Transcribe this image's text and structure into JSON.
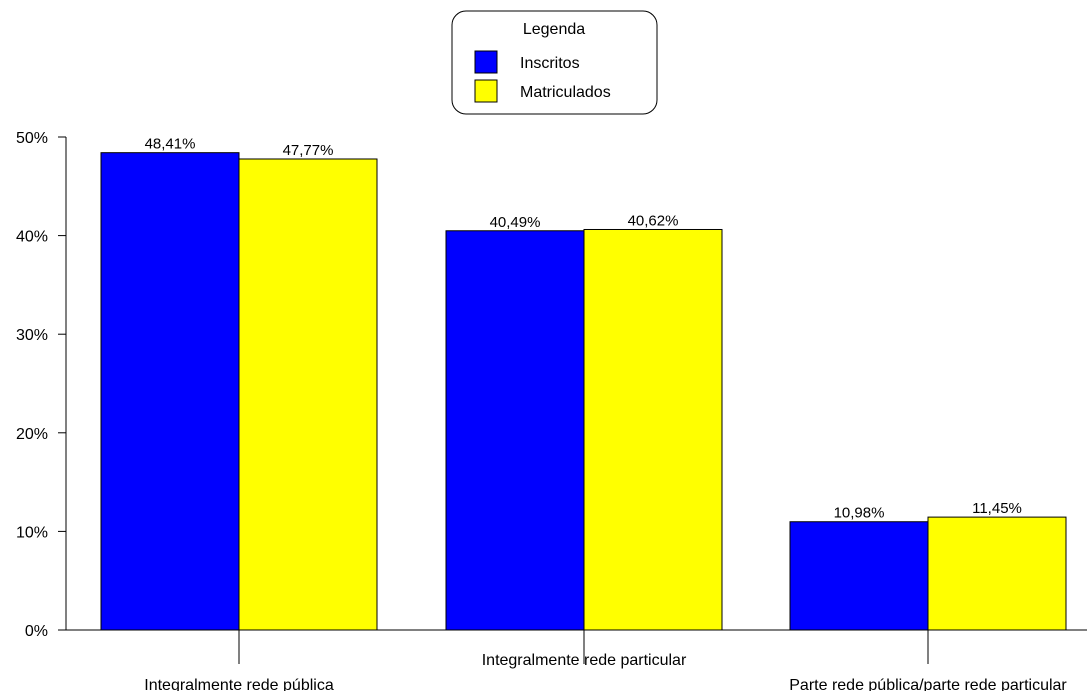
{
  "chart_data": {
    "type": "bar",
    "title": "",
    "xlabel": "",
    "ylabel": "",
    "categories": [
      "Integralmente rede pública",
      "Integralmente rede particular",
      "Parte rede pública/parte rede particular"
    ],
    "series": [
      {
        "name": "Inscritos",
        "color": "#0000FF",
        "values": [
          48.41,
          40.49,
          10.98
        ],
        "labels": [
          "48,41%",
          "40,49%",
          "10,98%"
        ]
      },
      {
        "name": "Matriculados",
        "color": "#FFFF00",
        "values": [
          47.77,
          40.62,
          11.45
        ],
        "labels": [
          "47,77%",
          "40,62%",
          "11,45%"
        ]
      }
    ],
    "ylim": [
      0,
      50
    ],
    "yticks": [
      0,
      10,
      20,
      30,
      40,
      50
    ],
    "ytick_labels": [
      "0%",
      "10%",
      "20%",
      "30%",
      "40%",
      "50%"
    ],
    "legend": {
      "title": "Legenda",
      "position": "top-center"
    },
    "grid": false
  }
}
